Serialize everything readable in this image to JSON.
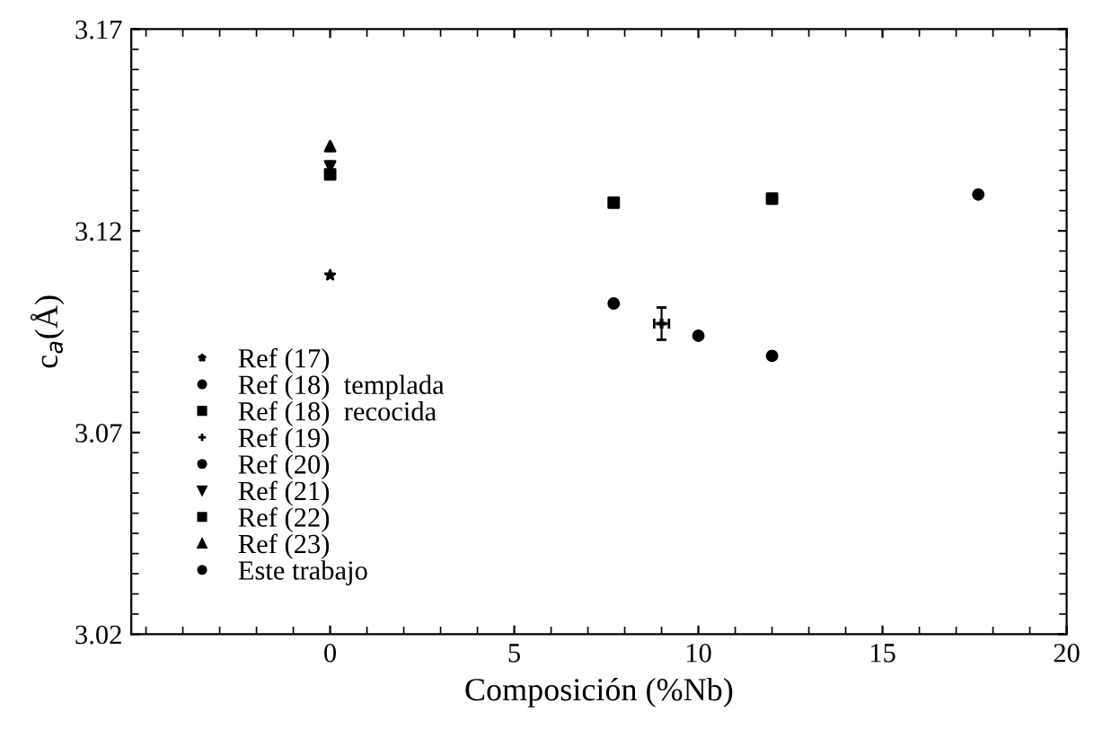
{
  "chart_data": {
    "type": "scatter",
    "xlabel": "Composición (%Nb)",
    "ylabel": "c$_{a}$(Å)",
    "xlim": [
      -5.4,
      20
    ],
    "ylim": [
      3.02,
      3.17
    ],
    "xticks": [
      0,
      5,
      10,
      15,
      20
    ],
    "yticks": [
      3.02,
      3.07,
      3.12,
      3.17
    ],
    "grid": false,
    "legend": "bottom left",
    "series": [
      {
        "name": "Ref (17)",
        "color": "#000000",
        "marker": "star",
        "x": [
          0
        ],
        "values": [
          3.109
        ]
      },
      {
        "name": "Ref (18)  templada",
        "color": "#000000",
        "marker": "circle",
        "x": [
          7.7,
          12
        ],
        "values": [
          3.102,
          3.089
        ]
      },
      {
        "name": "Ref (18)  recocida",
        "color": "#000000",
        "marker": "square",
        "x": [
          7.7,
          12
        ],
        "values": [
          3.127,
          3.128
        ]
      },
      {
        "name": "Ref (19)",
        "color": "#000000",
        "marker": "cross",
        "x": [
          9
        ],
        "values": [
          3.097
        ],
        "errors": [
          0.004
        ],
        "xerrors": [
          0.2
        ]
      },
      {
        "name": "Ref (20)",
        "color": "#000000",
        "marker": "circle",
        "x": [
          10,
          17.6
        ],
        "values": [
          3.094,
          3.129
        ]
      },
      {
        "name": "Ref (21)",
        "color": "#000000",
        "marker": "triangle_down",
        "x": [
          0
        ],
        "values": [
          3.136
        ]
      },
      {
        "name": "Ref (22)",
        "color": "#000000",
        "marker": "square",
        "x": [
          0
        ],
        "values": [
          3.134
        ]
      },
      {
        "name": "Ref (23)",
        "color": "#000000",
        "marker": "triangle",
        "x": [
          0
        ],
        "values": [
          3.141
        ]
      },
      {
        "name": "Este trabajo",
        "color": "#000000",
        "marker": "circle"
      }
    ]
  }
}
